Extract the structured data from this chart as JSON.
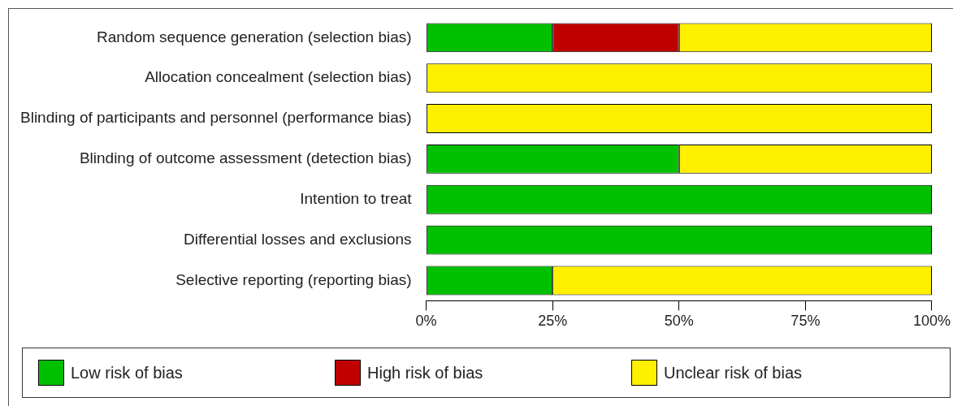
{
  "chart_data": {
    "type": "bar",
    "orientation": "horizontal",
    "stacked": true,
    "categories": [
      "Random sequence generation (selection bias)",
      "Allocation concealment (selection bias)",
      "Blinding of participants and personnel (performance bias)",
      "Blinding of outcome assessment (detection bias)",
      "Intention to treat",
      "Differential losses and exclusions",
      "Selective reporting (reporting bias)"
    ],
    "series": [
      {
        "name": "Low risk of bias",
        "color": "#00c000",
        "values": [
          25,
          0,
          0,
          50,
          100,
          100,
          25
        ]
      },
      {
        "name": "High risk of bias",
        "color": "#c00000",
        "values": [
          25,
          0,
          0,
          0,
          0,
          0,
          0
        ]
      },
      {
        "name": "Unclear risk of bias",
        "color": "#fff000",
        "values": [
          50,
          100,
          100,
          50,
          0,
          0,
          75
        ]
      }
    ],
    "xlim": [
      0,
      100
    ],
    "xticks": [
      {
        "value": 0,
        "label": "0%"
      },
      {
        "value": 25,
        "label": "25%"
      },
      {
        "value": 50,
        "label": "50%"
      },
      {
        "value": 75,
        "label": "75%"
      },
      {
        "value": 100,
        "label": "100%"
      }
    ],
    "legend": "bottom"
  }
}
